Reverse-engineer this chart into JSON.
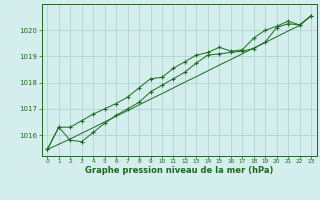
{
  "title": "Graphe pression niveau de la mer (hPa)",
  "background_color": "#d4eeed",
  "grid_color": "#aacfcc",
  "line_color": "#1a6b1a",
  "xlim": [
    -0.5,
    23.5
  ],
  "ylim": [
    1015.2,
    1021.0
  ],
  "xticks": [
    0,
    1,
    2,
    3,
    4,
    5,
    6,
    7,
    8,
    9,
    10,
    11,
    12,
    13,
    14,
    15,
    16,
    17,
    18,
    19,
    20,
    21,
    22,
    23
  ],
  "yticks": [
    1016,
    1017,
    1018,
    1019,
    1020
  ],
  "series1_x": [
    0,
    1,
    2,
    3,
    4,
    5,
    6,
    7,
    8,
    9,
    10,
    11,
    12,
    13,
    14,
    15,
    16,
    17,
    18,
    19,
    20,
    21,
    22,
    23
  ],
  "series1_y": [
    1015.45,
    1016.3,
    1015.8,
    1015.75,
    1016.1,
    1016.45,
    1016.75,
    1017.0,
    1017.25,
    1017.65,
    1017.9,
    1018.15,
    1018.4,
    1018.75,
    1019.05,
    1019.1,
    1019.15,
    1019.2,
    1019.3,
    1019.55,
    1020.1,
    1020.25,
    1020.2,
    1020.55
  ],
  "series2_x": [
    0,
    1,
    2,
    3,
    4,
    5,
    6,
    7,
    8,
    9,
    10,
    11,
    12,
    13,
    14,
    15,
    16,
    17,
    18,
    19,
    20,
    21,
    22,
    23
  ],
  "series2_y": [
    1015.45,
    1016.3,
    1016.3,
    1016.55,
    1016.8,
    1017.0,
    1017.2,
    1017.45,
    1017.8,
    1018.15,
    1018.2,
    1018.55,
    1018.8,
    1019.05,
    1019.15,
    1019.35,
    1019.2,
    1019.25,
    1019.7,
    1020.0,
    1020.15,
    1020.35,
    1020.2,
    1020.55
  ],
  "series3_x": [
    0,
    1,
    2,
    3,
    4,
    5,
    6,
    7,
    8,
    9,
    10,
    11,
    12,
    13,
    14,
    15,
    16,
    17,
    18,
    19,
    20,
    21,
    22,
    23
  ],
  "series3_y": [
    1015.45,
    1015.65,
    1015.85,
    1016.07,
    1016.28,
    1016.5,
    1016.72,
    1016.93,
    1017.15,
    1017.37,
    1017.58,
    1017.8,
    1018.02,
    1018.23,
    1018.45,
    1018.67,
    1018.88,
    1019.1,
    1019.32,
    1019.53,
    1019.75,
    1019.97,
    1020.18,
    1020.55
  ]
}
